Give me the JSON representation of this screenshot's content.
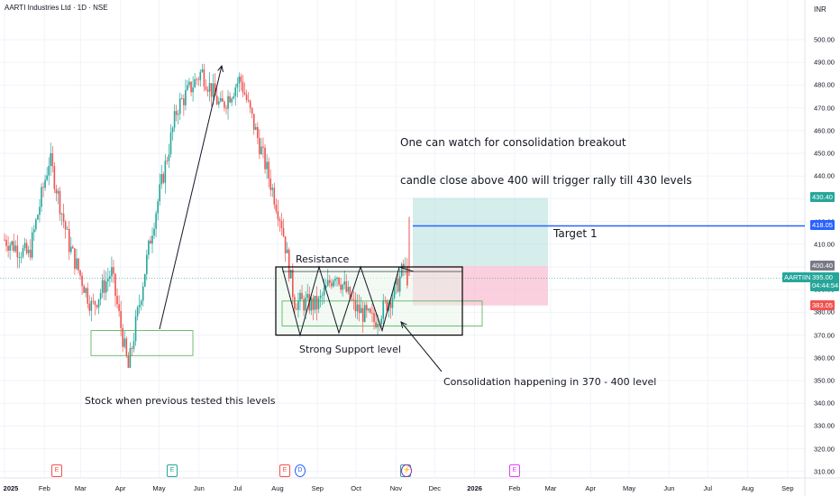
{
  "header": {
    "title": "AARTI Industries Ltd · 1D · NSE",
    "currency": "INR"
  },
  "colors": {
    "up": "#26a69a",
    "down": "#ef5350",
    "target_line": "#2962ff",
    "profit_zone": "#b2dfdb",
    "loss_zone": "#f8bbd0",
    "support_box": "#4caf50"
  },
  "annotations": {
    "watch": "One can watch for consolidation breakout",
    "trigger": "candle close above 400 will trigger rally till 430 levels",
    "target": "Target 1",
    "resistance": "Resistance",
    "support": "Strong Support level",
    "consolidation": "Consolidation happening in 370 - 400 level",
    "previous": "Stock when previous tested this levels"
  },
  "price_tags": {
    "t430": "430.40",
    "t418": "418.05",
    "t400": "400.40",
    "symbol": "AARTIIND",
    "price": "395.00",
    "timer": "04:44:54",
    "t383": "383.05"
  },
  "events": [
    {
      "label": "E",
      "month": "Feb",
      "kind": "earnings"
    },
    {
      "label": "E",
      "month": "May",
      "kind": "earnings"
    },
    {
      "label": "E",
      "month": "Aug",
      "kind": "earnings"
    },
    {
      "label": "D",
      "month": "Aug",
      "kind": "dividend"
    },
    {
      "label": "E",
      "month": "Nov",
      "kind": "earnings"
    },
    {
      "label": "⚡",
      "month": "Nov",
      "kind": "split"
    },
    {
      "label": "E",
      "month": "Feb",
      "kind": "earnings-2026"
    }
  ],
  "chart_data": {
    "type": "candlestick",
    "title": "AARTI Industries Ltd · 1D · NSE",
    "currency": "INR",
    "ylim": [
      305,
      505
    ],
    "y_ticks": [
      310,
      320,
      330,
      340,
      350,
      360,
      370,
      380,
      390,
      400,
      410,
      420,
      430,
      440,
      450,
      460,
      470,
      480,
      490,
      500
    ],
    "x_ticks": [
      "2025",
      "Feb",
      "Mar",
      "Apr",
      "May",
      "Jun",
      "Jul",
      "Aug",
      "Sep",
      "Oct",
      "Nov",
      "Dec",
      "2026",
      "Feb",
      "Mar",
      "Apr",
      "May",
      "Jun",
      "Jul",
      "Aug",
      "Sep"
    ],
    "price_path": [
      {
        "date": "2025-01-01",
        "close": 412
      },
      {
        "date": "2025-01-20",
        "close": 405
      },
      {
        "date": "2025-02-05",
        "close": 448
      },
      {
        "date": "2025-02-20",
        "close": 410
      },
      {
        "date": "2025-03-10",
        "close": 382
      },
      {
        "date": "2025-03-25",
        "close": 398
      },
      {
        "date": "2025-04-07",
        "close": 355
      },
      {
        "date": "2025-04-25",
        "close": 415
      },
      {
        "date": "2025-05-15",
        "close": 470
      },
      {
        "date": "2025-06-03",
        "close": 486
      },
      {
        "date": "2025-06-18",
        "close": 470
      },
      {
        "date": "2025-07-03",
        "close": 483
      },
      {
        "date": "2025-07-20",
        "close": 450
      },
      {
        "date": "2025-08-04",
        "close": 420
      },
      {
        "date": "2025-08-14",
        "close": 385
      },
      {
        "date": "2025-09-01",
        "close": 383
      },
      {
        "date": "2025-09-15",
        "close": 398
      },
      {
        "date": "2025-09-30",
        "close": 382
      },
      {
        "date": "2025-10-15",
        "close": 376
      },
      {
        "date": "2025-10-31",
        "close": 389
      },
      {
        "date": "2025-11-07",
        "close": 400
      },
      {
        "date": "2025-11-10",
        "close": 395
      }
    ],
    "last_price": 395.0,
    "levels": {
      "target": 430.4,
      "target_1": 418.05,
      "entry": 400.4,
      "stop": 383.05
    },
    "zones": {
      "consolidation": [
        370,
        400
      ]
    }
  }
}
